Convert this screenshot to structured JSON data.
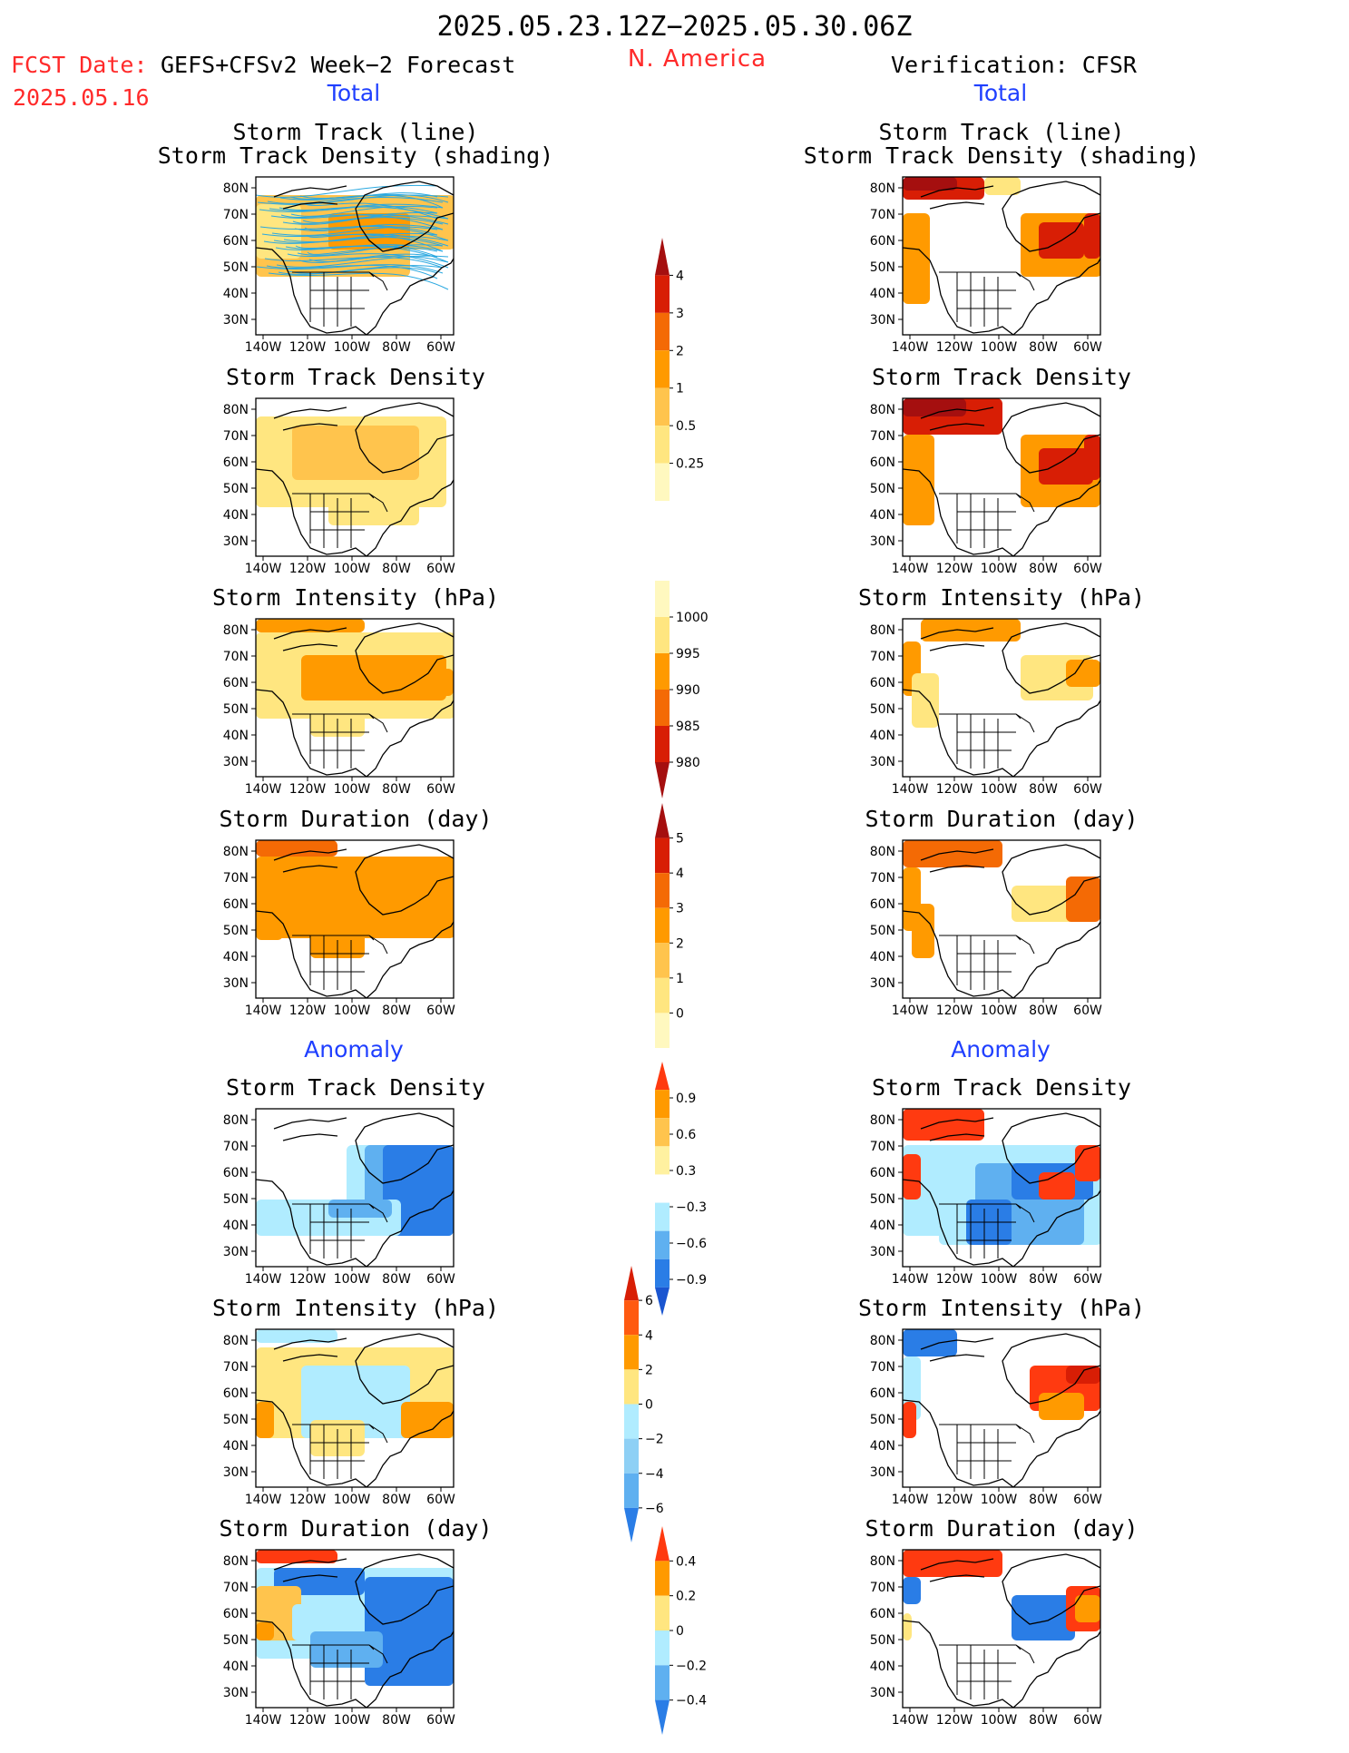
{
  "header": {
    "title": "2025.05.23.12Z−2025.05.30.06Z",
    "region": "N. America",
    "fcst_label": "FCST Date:",
    "fcst_source": "GEFS+CFSv2 Week−2 Forecast",
    "fcst_date": "2025.05.16",
    "verification": "Verification: CFSR"
  },
  "sections": {
    "total_left": "Total",
    "total_right": "Total",
    "anomaly_left": "Anomaly",
    "anomaly_right": "Anomaly"
  },
  "panel_titles": {
    "track_line_1": "Storm Track (line)",
    "track_line_2": "Storm Track Density (shading)",
    "density": "Storm Track Density",
    "intensity": "Storm Intensity (hPa)",
    "duration": "Storm Duration (day)"
  },
  "axes": {
    "lat_labels": [
      "80N",
      "70N",
      "60N",
      "50N",
      "40N",
      "30N"
    ],
    "lon_labels": [
      "140W",
      "120W",
      "100W",
      "80W",
      "60W"
    ]
  },
  "colorbars": [
    {
      "name": "track-density-colorbar",
      "ticks": [
        "4",
        "3",
        "2",
        "1",
        "0.5",
        "0.25"
      ],
      "colors": [
        "#a50f0f",
        "#d81e05",
        "#f46a05",
        "#ff9a00",
        "#ffc44d",
        "#ffe680",
        "#fff8bf"
      ],
      "ends": "upper"
    },
    {
      "name": "intensity-colorbar",
      "ticks": [
        "1000",
        "995",
        "990",
        "985",
        "980"
      ],
      "colors": [
        "#fff8bf",
        "#ffe680",
        "#ff9a00",
        "#f46a05",
        "#d81e05",
        "#a50f0f"
      ],
      "ends": "lower"
    },
    {
      "name": "duration-colorbar",
      "ticks": [
        "5",
        "4",
        "3",
        "2",
        "1",
        "0"
      ],
      "colors": [
        "#a50f0f",
        "#d81e05",
        "#f46a05",
        "#ff9a00",
        "#ffc44d",
        "#ffe680",
        "#fff8bf"
      ],
      "ends": "upper"
    },
    {
      "name": "density-anomaly-colorbar",
      "ticks": [
        "0.9",
        "0.6",
        "0.3",
        "−0.3",
        "−0.6",
        "−0.9"
      ],
      "colors": [
        "#ff3a10",
        "#ff9a00",
        "#ffc44d",
        "#fff1a0",
        "#ffffff",
        "#b0ecff",
        "#5fb0f0",
        "#2a7de6",
        "#1a55d0"
      ],
      "ends": "both"
    },
    {
      "name": "intensity-anomaly-colorbar",
      "ticks": [
        "6",
        "4",
        "2",
        "0",
        "−2",
        "−4",
        "−6"
      ],
      "colors": [
        "#d81e05",
        "#ff5a10",
        "#ff9a00",
        "#ffe680",
        "#b0ecff",
        "#8ed0f5",
        "#5fb0f0",
        "#2a7de6"
      ],
      "ends": "both"
    },
    {
      "name": "duration-anomaly-colorbar",
      "ticks": [
        "0.4",
        "0.2",
        "0",
        "−0.2",
        "−0.4"
      ],
      "colors": [
        "#ff3a10",
        "#ff9a00",
        "#ffe680",
        "#b0ecff",
        "#5fb0f0",
        "#2a7de6"
      ],
      "ends": "both"
    }
  ],
  "colors": {
    "title_red": "#ff2a2a",
    "section_blue": "#1f3fff",
    "track_lines": "#2aa8e0"
  }
}
